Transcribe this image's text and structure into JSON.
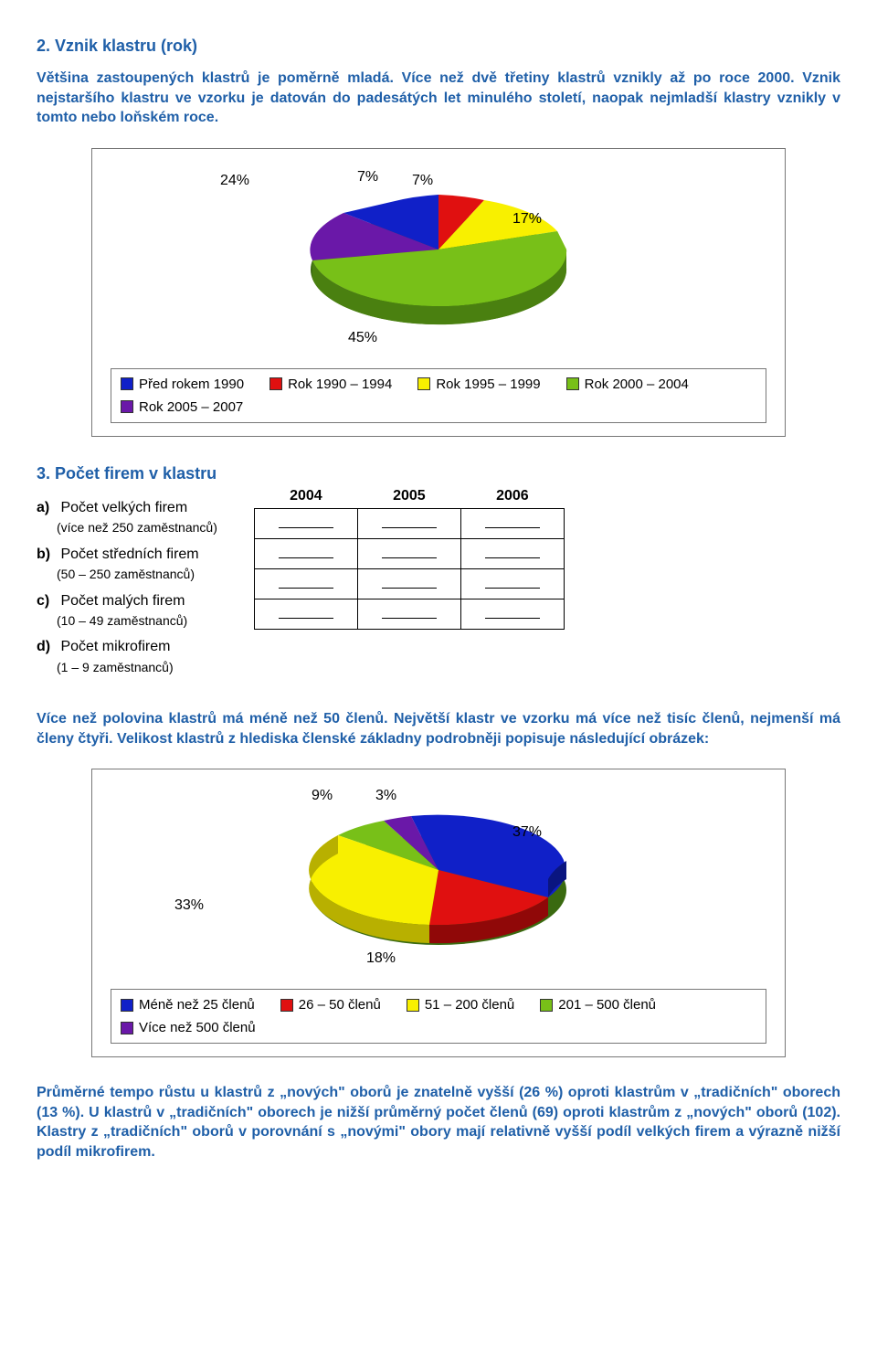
{
  "sec2": {
    "title": "2.   Vznik klastru (rok)",
    "para": "Většina zastoupených klastrů je poměrně mladá. Více než dvě třetiny klastrů vznikly až po roce 2000. Vznik nejstaršího klastru ve vzorku je datován do padesátých let minulého století, naopak nejmladší klastry vznikly v tomto nebo loňském roce."
  },
  "chart1": {
    "labels": {
      "a": "24%",
      "b": "7%",
      "c": "7%",
      "d": "17%",
      "e": "45%"
    },
    "colors": {
      "blue": "#1020c8",
      "red": "#e01010",
      "yellow": "#f8f000",
      "green": "#78c018",
      "purple": "#6a18a8"
    },
    "legend": [
      {
        "swatch": "#1020c8",
        "text": "Před rokem 1990"
      },
      {
        "swatch": "#e01010",
        "text": "Rok 1990 – 1994"
      },
      {
        "swatch": "#f8f000",
        "text": "Rok 1995 – 1999"
      },
      {
        "swatch": "#78c018",
        "text": "Rok 2000 – 2004"
      },
      {
        "swatch": "#6a18a8",
        "text": "Rok 2005 – 2007"
      }
    ]
  },
  "sec3": {
    "title": "3.   Počet firem v klastru",
    "years": [
      "2004",
      "2005",
      "2006"
    ],
    "items": [
      {
        "l": "a)",
        "t": "Počet velkých firem",
        "s": "(více než 250 zaměstnanců)"
      },
      {
        "l": "b)",
        "t": "Počet středních firem",
        "s": "(50 – 250 zaměstnanců)"
      },
      {
        "l": "c)",
        "t": "Počet malých firem",
        "s": "(10 – 49 zaměstnanců)"
      },
      {
        "l": "d)",
        "t": "Počet mikrofirem",
        "s": "(1 – 9 zaměstnanců)"
      }
    ]
  },
  "para2": "Více než polovina klastrů má méně než 50 členů. Největší klastr ve vzorku má více než tisíc členů, nejmenší má členy čtyři. Velikost klastrů z hlediska členské základny podrobněji popisuje následující obrázek:",
  "chart2": {
    "labels": {
      "a": "9%",
      "b": "3%",
      "c": "37%",
      "d": "33%",
      "e": "18%"
    },
    "colors": {
      "blue": "#1020c8",
      "red": "#e01010",
      "yellow": "#f8f000",
      "green": "#78c018",
      "purple": "#6a18a8"
    },
    "legend": [
      {
        "swatch": "#1020c8",
        "text": "Méně než 25 členů"
      },
      {
        "swatch": "#e01010",
        "text": "26 – 50 členů"
      },
      {
        "swatch": "#f8f000",
        "text": "51 – 200 členů"
      },
      {
        "swatch": "#78c018",
        "text": "201 – 500 členů"
      },
      {
        "swatch": "#6a18a8",
        "text": "Více než 500 členů"
      }
    ]
  },
  "para3": "Průměrné tempo růstu u klastrů z „nových\" oborů je znatelně vyšší (26 %) oproti klastrům v „tradičních\" oborech (13 %). U klastrů v „tradičních\" oborech je nižší průměrný počet členů (69) oproti klastrům z „nových\" oborů (102). Klastry z „tradičních\" oborů v porovnání s „novými\" obory mají relativně vyšší podíl velkých firem a výrazně nižší podíl mikrofirem."
}
